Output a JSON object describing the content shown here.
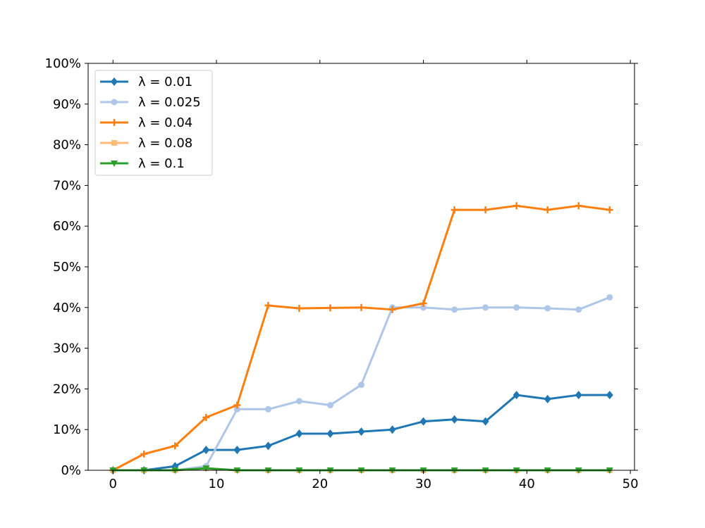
{
  "chart_data": {
    "type": "line",
    "title": "",
    "xlabel": "",
    "ylabel": "",
    "xlim": [
      -2.4,
      50.4
    ],
    "ylim": [
      0,
      1.0
    ],
    "xticks": [
      0,
      10,
      20,
      30,
      40,
      50
    ],
    "xtick_labels": [
      "0",
      "10",
      "20",
      "30",
      "40",
      "50"
    ],
    "yticks": [
      0,
      0.1,
      0.2,
      0.3,
      0.4,
      0.5,
      0.6,
      0.7,
      0.8,
      0.9,
      1.0
    ],
    "ytick_labels": [
      "0%",
      "10%",
      "20%",
      "30%",
      "40%",
      "50%",
      "60%",
      "70%",
      "80%",
      "90%",
      "100%"
    ],
    "grid": false,
    "legend": "top-left",
    "x": [
      0,
      3,
      6,
      9,
      12,
      15,
      18,
      21,
      24,
      27,
      30,
      33,
      36,
      39,
      42,
      45,
      48
    ],
    "series": [
      {
        "name": "λ = 0.01",
        "color": "#1f77b4",
        "marker": "diamond",
        "values": [
          0,
          0,
          0.01,
          0.05,
          0.05,
          0.06,
          0.09,
          0.09,
          0.095,
          0.1,
          0.12,
          0.125,
          0.12,
          0.185,
          0.175,
          0.185,
          0.185
        ]
      },
      {
        "name": "λ = 0.025",
        "color": "#aec7e8",
        "marker": "circle",
        "values": [
          0,
          0,
          0,
          0.01,
          0.15,
          0.15,
          0.17,
          0.16,
          0.21,
          0.4,
          0.4,
          0.395,
          0.4,
          0.4,
          0.398,
          0.395,
          0.425
        ]
      },
      {
        "name": "λ = 0.04",
        "color": "#ff7f0e",
        "marker": "plus",
        "values": [
          0,
          0.04,
          0.06,
          0.13,
          0.16,
          0.405,
          0.398,
          0.399,
          0.4,
          0.395,
          0.41,
          0.64,
          0.64,
          0.65,
          0.64,
          0.65,
          0.64
        ]
      },
      {
        "name": "λ = 0.08",
        "color": "#ffbb78",
        "marker": "square",
        "values": [
          0,
          0,
          0,
          0.005,
          0,
          0,
          0,
          0,
          0,
          0,
          0,
          0,
          0,
          0,
          0,
          0,
          0
        ]
      },
      {
        "name": "λ = 0.1",
        "color": "#2ca02c",
        "marker": "triangle-down",
        "values": [
          0,
          0,
          0,
          0.005,
          0,
          0,
          0,
          0,
          0,
          0,
          0,
          0,
          0,
          0,
          0,
          0,
          0
        ]
      }
    ]
  }
}
